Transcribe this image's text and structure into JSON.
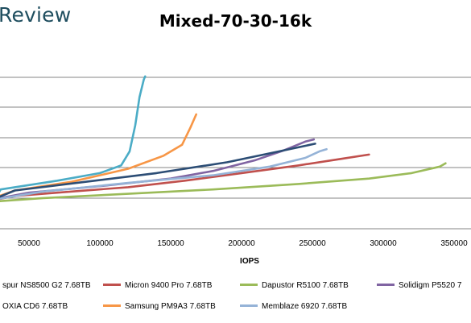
{
  "brand": {
    "text": "Review"
  },
  "chart_data": {
    "type": "line",
    "title": "Mixed-70-30-16k",
    "xlabel": "IOPS",
    "ylabel": "",
    "x_ticks": [
      "50000",
      "100000",
      "150000",
      "200000",
      "250000",
      "300000",
      "350000"
    ],
    "xlim": [
      32000,
      355000
    ],
    "ylim": [
      0,
      6
    ],
    "grid": "horizontal",
    "legend": "bottom",
    "series": [
      {
        "name": "spur NS8500 G2 7.68TB",
        "color": "#4f81bd",
        "points": []
      },
      {
        "name": "Micron 9400 Pro 7.68TB",
        "color": "#c0504d",
        "points": [
          [
            0,
            0.08
          ],
          [
            40000,
            0.25
          ],
          [
            80000,
            0.45
          ],
          [
            120000,
            0.65
          ],
          [
            160000,
            0.95
          ],
          [
            200000,
            1.3
          ],
          [
            240000,
            1.65
          ],
          [
            270000,
            1.95
          ],
          [
            290000,
            2.15
          ]
        ]
      },
      {
        "name": "Dapustor R5100 7.68TB",
        "color": "#9bbb59",
        "points": [
          [
            0,
            0
          ],
          [
            60000,
            0.15
          ],
          [
            120000,
            0.35
          ],
          [
            180000,
            0.55
          ],
          [
            240000,
            0.8
          ],
          [
            290000,
            1.05
          ],
          [
            320000,
            1.3
          ],
          [
            340000,
            1.6
          ],
          [
            344000,
            1.75
          ]
        ]
      },
      {
        "name": "Solidigm P5520 7",
        "color": "#8064a2",
        "points": [
          [
            0,
            0.12
          ],
          [
            50000,
            0.4
          ],
          [
            100000,
            0.7
          ],
          [
            150000,
            1.05
          ],
          [
            180000,
            1.4
          ],
          [
            210000,
            1.9
          ],
          [
            230000,
            2.35
          ],
          [
            245000,
            2.75
          ],
          [
            251000,
            2.85
          ]
        ]
      },
      {
        "name": "OXIA CD6 7.68TB",
        "color": "#4bacc6",
        "points": [
          [
            0,
            0.2
          ],
          [
            30000,
            0.55
          ],
          [
            70000,
            0.95
          ],
          [
            100000,
            1.3
          ],
          [
            115000,
            1.65
          ],
          [
            121000,
            2.3
          ],
          [
            125000,
            3.5
          ],
          [
            128000,
            4.8
          ],
          [
            131000,
            5.6
          ],
          [
            132000,
            5.75
          ]
        ]
      },
      {
        "name": "Samsung PM9A3 7.68TB",
        "color": "#f79646",
        "points": [
          [
            0,
            0.2
          ],
          [
            40000,
            0.5
          ],
          [
            80000,
            0.9
          ],
          [
            120000,
            1.5
          ],
          [
            145000,
            2.1
          ],
          [
            158000,
            2.6
          ],
          [
            164000,
            3.4
          ],
          [
            168000,
            4.0
          ]
        ]
      },
      {
        "name": "Memblaze 6920 7.68TB",
        "color": "#95b3d7",
        "points": [
          [
            0,
            0.1
          ],
          [
            60000,
            0.45
          ],
          [
            120000,
            0.85
          ],
          [
            180000,
            1.2
          ],
          [
            220000,
            1.6
          ],
          [
            245000,
            2.0
          ],
          [
            255000,
            2.3
          ],
          [
            260000,
            2.4
          ]
        ]
      },
      {
        "name": "",
        "color": "#2c4d75",
        "points": [
          [
            0,
            0.15
          ],
          [
            40000,
            0.5
          ],
          [
            90000,
            0.9
          ],
          [
            140000,
            1.3
          ],
          [
            190000,
            1.8
          ],
          [
            230000,
            2.35
          ],
          [
            252000,
            2.65
          ]
        ]
      }
    ]
  }
}
